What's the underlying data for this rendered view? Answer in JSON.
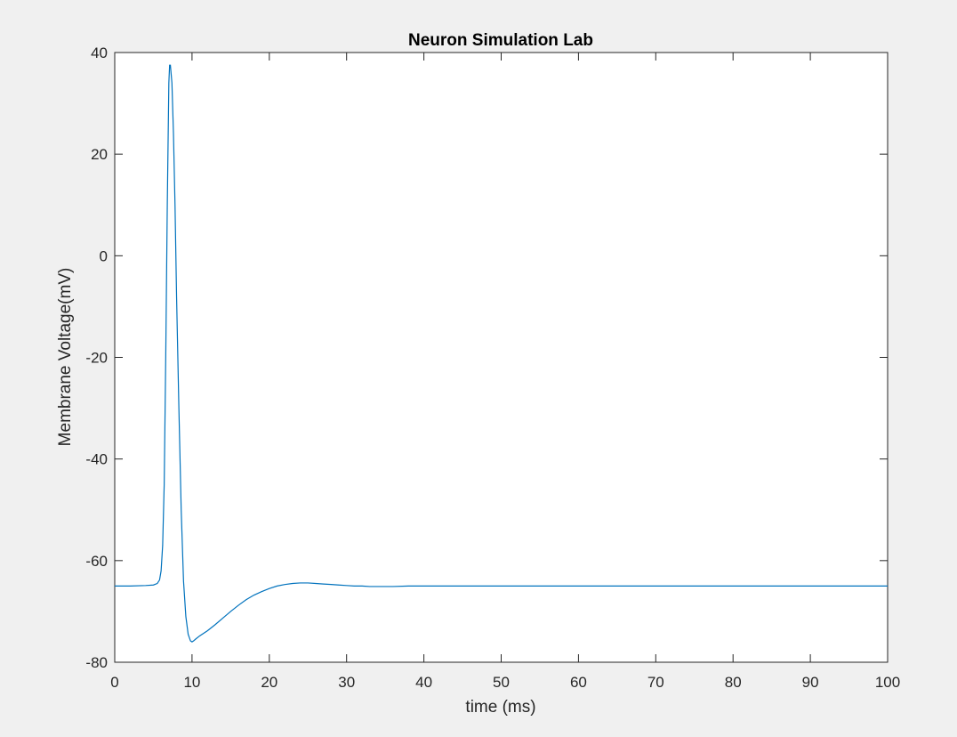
{
  "window": {
    "background": "#f0f0f0"
  },
  "chart_data": {
    "type": "line",
    "title": "Neuron Simulation Lab",
    "xlabel": "time (ms)",
    "ylabel": "Membrane Voltage(mV)",
    "xlim": [
      0,
      100
    ],
    "ylim": [
      -80,
      40
    ],
    "xticks": [
      0,
      10,
      20,
      30,
      40,
      50,
      60,
      70,
      80,
      90,
      100
    ],
    "yticks": [
      -80,
      -60,
      -40,
      -20,
      0,
      20,
      40
    ],
    "grid": false,
    "line_color": "#0072bd",
    "series": [
      {
        "name": "Membrane Voltage",
        "x": [
          0,
          2,
          4,
          5,
          5.5,
          5.8,
          6.0,
          6.2,
          6.4,
          6.6,
          6.8,
          7.0,
          7.1,
          7.2,
          7.4,
          7.6,
          7.8,
          8.0,
          8.3,
          8.6,
          8.9,
          9.2,
          9.5,
          9.8,
          10.0,
          10.2,
          10.5,
          11,
          12,
          13,
          14,
          15,
          16,
          17,
          18,
          19,
          20,
          21,
          22,
          23,
          24,
          25,
          26,
          27,
          28,
          29,
          30,
          31,
          32,
          33,
          34,
          36,
          38,
          40,
          42,
          45,
          50,
          60,
          70,
          80,
          90,
          100
        ],
        "y": [
          -65,
          -65,
          -64.9,
          -64.8,
          -64.5,
          -63.8,
          -62,
          -57,
          -45,
          -20,
          10,
          34,
          37.5,
          37.5,
          34,
          24,
          10,
          -8,
          -30,
          -50,
          -64,
          -71,
          -74.5,
          -75.8,
          -76,
          -75.8,
          -75.4,
          -74.8,
          -73.8,
          -72.6,
          -71.3,
          -70.0,
          -68.8,
          -67.7,
          -66.8,
          -66.1,
          -65.5,
          -65.0,
          -64.7,
          -64.5,
          -64.4,
          -64.4,
          -64.5,
          -64.6,
          -64.7,
          -64.8,
          -64.9,
          -65.0,
          -65.0,
          -65.1,
          -65.1,
          -65.1,
          -65.0,
          -65.0,
          -65.0,
          -65.0,
          -65.0,
          -65.0,
          -65.0,
          -65.0,
          -65.0,
          -65.0
        ]
      }
    ]
  }
}
